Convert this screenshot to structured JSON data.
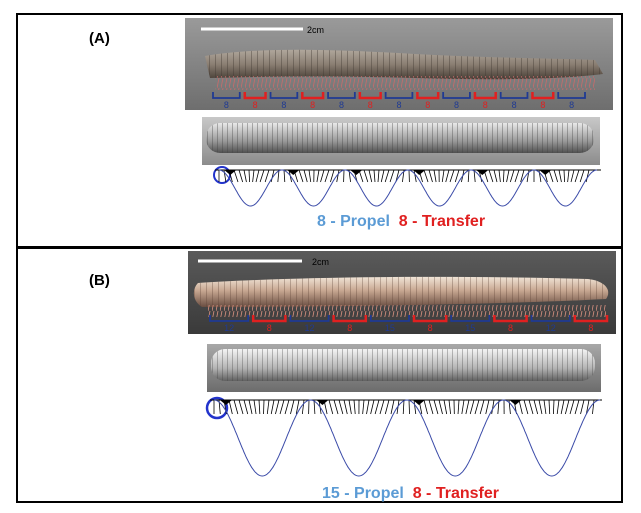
{
  "panels": [
    {
      "label": "(A)",
      "scale_label": "2cm",
      "segments": [
        "8",
        "8",
        "8",
        "8",
        "8",
        "8",
        "8",
        "8",
        "8",
        "8",
        "8",
        "8",
        "8"
      ],
      "caption_propel": "8 - Propel",
      "caption_transfer": "8 - Transfer",
      "wave_count": 6
    },
    {
      "label": "(B)",
      "scale_label": "2cm",
      "segments": [
        "12",
        "8",
        "12",
        "8",
        "15",
        "8",
        "15",
        "8",
        "12",
        "8"
      ],
      "caption_propel": "15 - Propel",
      "caption_transfer": "8 - Transfer",
      "wave_count": 4
    }
  ],
  "colors": {
    "propel": "#5b9bd5",
    "transfer": "#e02020",
    "bracket_blue": "#1f3a93",
    "wave": "#3b4ba8",
    "ring": "#2233cc"
  }
}
